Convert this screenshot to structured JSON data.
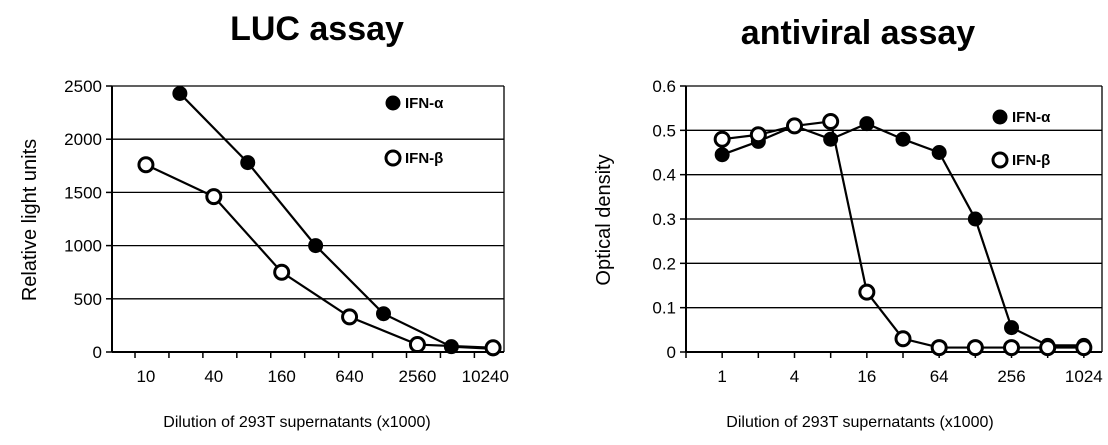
{
  "chart_data": [
    {
      "type": "line",
      "title": "LUC assay",
      "xlabel": "Dilution of 293T supernatants (x1000)",
      "ylabel": "Relative light units",
      "xscale": "log2",
      "xlim": [
        5,
        15000
      ],
      "ylim": [
        0,
        2500
      ],
      "x_ticks": [
        10,
        40,
        160,
        640,
        2560,
        10240
      ],
      "x_tick_labels": [
        "10",
        "40",
        "160",
        "640",
        "2560",
        "10240"
      ],
      "y_ticks": [
        0,
        500,
        1000,
        1500,
        2000,
        2500
      ],
      "y_tick_labels": [
        "0",
        "500",
        "1000",
        "1500",
        "2000",
        "2500"
      ],
      "grid": "horizontal",
      "legend_position": "top-right",
      "series": [
        {
          "name": "IFN-α",
          "marker": "filled-circle",
          "x": [
            20,
            80,
            320,
            1280,
            5120,
            12000
          ],
          "y": [
            2430,
            1780,
            1000,
            360,
            50,
            30
          ]
        },
        {
          "name": "IFN-β",
          "marker": "open-circle",
          "x": [
            10,
            40,
            160,
            640,
            2560,
            12000
          ],
          "y": [
            1760,
            1460,
            750,
            330,
            70,
            40
          ]
        }
      ]
    },
    {
      "type": "line",
      "title": "antiviral assay",
      "xlabel": "Dilution of 293T supernatants (x1000)",
      "ylabel": "Optical density",
      "xscale": "log2",
      "xlim": [
        0.5,
        1450
      ],
      "ylim": [
        0,
        0.6
      ],
      "x_ticks": [
        1,
        4,
        16,
        64,
        256,
        1024
      ],
      "x_tick_labels": [
        "1",
        "4",
        "16",
        "64",
        "256",
        "1024"
      ],
      "y_ticks": [
        0,
        0.1,
        0.2,
        0.3,
        0.4,
        0.5,
        0.6
      ],
      "y_tick_labels": [
        "0",
        "0.1",
        "0.2",
        "0.3",
        "0.4",
        "0.5",
        "0.6"
      ],
      "grid": "horizontal",
      "legend_position": "top-right",
      "series": [
        {
          "name": "IFN-α",
          "marker": "filled-circle",
          "x": [
            1,
            2,
            4,
            8,
            16,
            32,
            64,
            128,
            256,
            512,
            1024
          ],
          "y": [
            0.445,
            0.475,
            0.51,
            0.48,
            0.515,
            0.48,
            0.45,
            0.3,
            0.055,
            0.015,
            0.015
          ]
        },
        {
          "name": "IFN-β",
          "marker": "open-circle",
          "x": [
            1,
            2,
            4,
            8,
            16,
            32,
            64,
            128,
            256,
            512,
            1024
          ],
          "y": [
            0.48,
            0.49,
            0.51,
            0.52,
            0.135,
            0.03,
            0.01,
            0.01,
            0.01,
            0.01,
            0.01
          ]
        }
      ]
    }
  ]
}
